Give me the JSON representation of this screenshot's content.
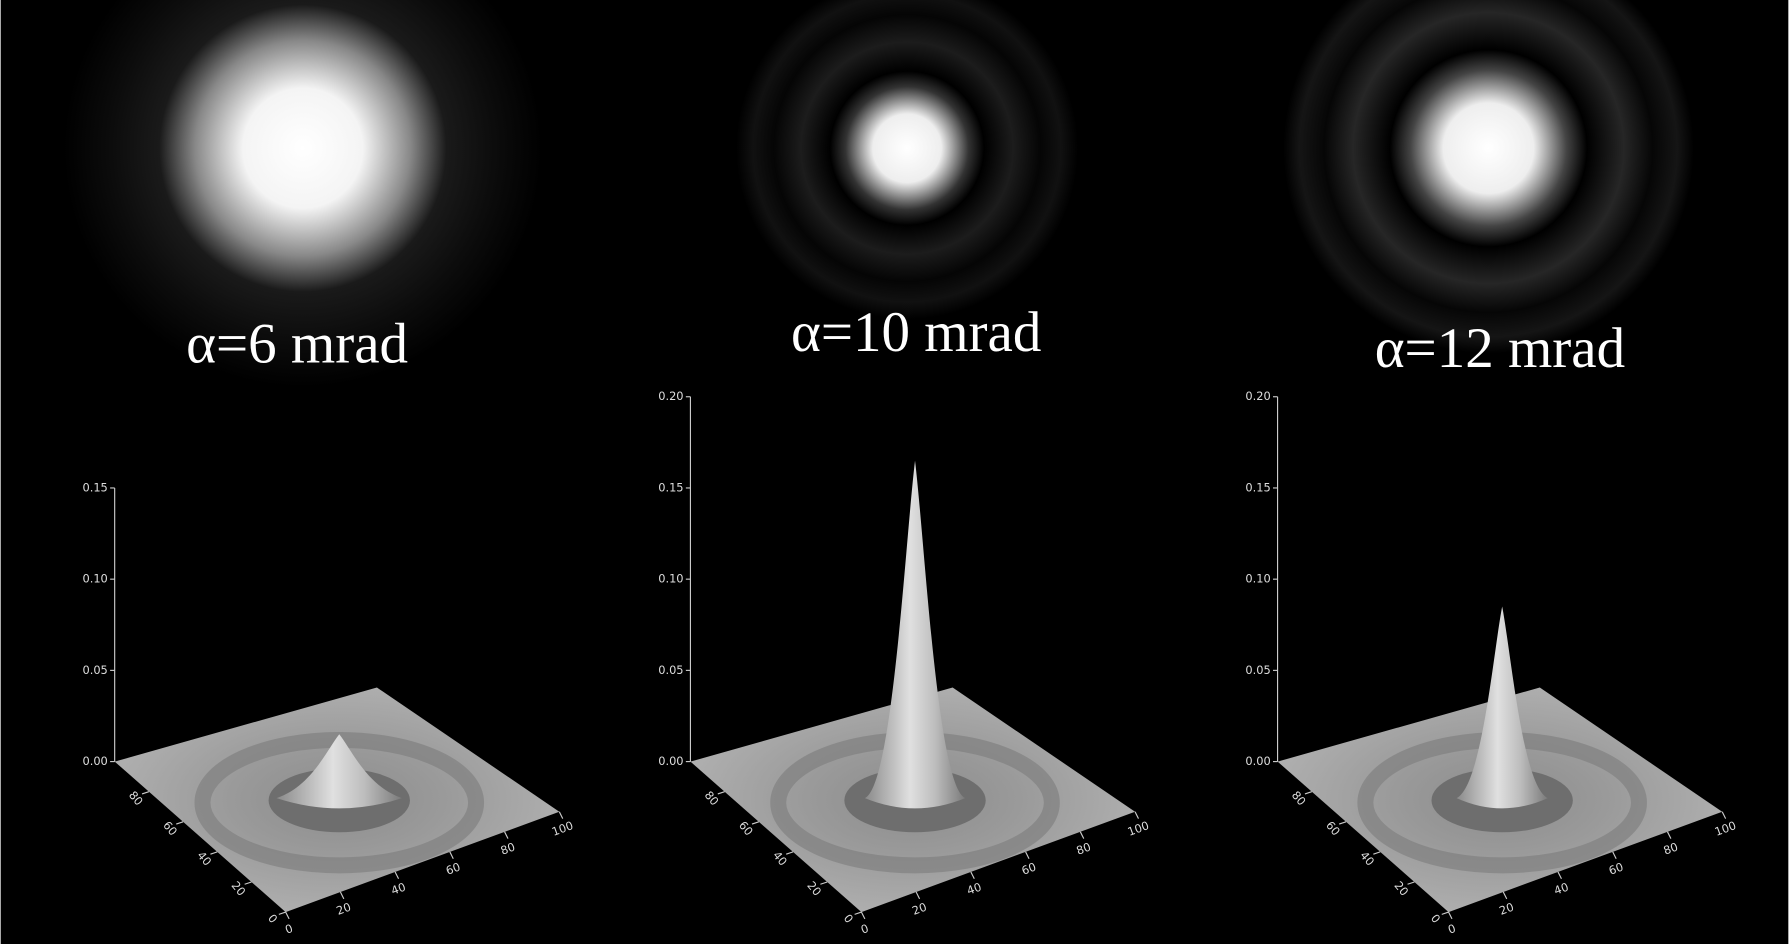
{
  "panels": [
    {
      "label": "α=6 mrad",
      "peak": 0.035,
      "zticks": [
        {
          "value": 0,
          "label": "0.00"
        },
        {
          "value": 0.05,
          "label": "0.05"
        },
        {
          "value": 0.1,
          "label": "0.10"
        },
        {
          "value": 0.15,
          "label": "0.15"
        }
      ],
      "xticks": [
        0,
        20,
        40,
        60,
        80,
        100
      ],
      "yticks": [
        0,
        20,
        40,
        60,
        80
      ]
    },
    {
      "label": "α=10 mrad",
      "peak": 0.185,
      "zticks": [
        {
          "value": 0,
          "label": "0.00"
        },
        {
          "value": 0.05,
          "label": "0.05"
        },
        {
          "value": 0.1,
          "label": "0.10"
        },
        {
          "value": 0.15,
          "label": "0.15"
        },
        {
          "value": 0.2,
          "label": "0.20"
        }
      ],
      "xticks": [
        0,
        20,
        40,
        60,
        80,
        100
      ],
      "yticks": [
        0,
        20,
        40,
        60,
        80
      ]
    },
    {
      "label": "α=12 mrad",
      "peak": 0.105,
      "zticks": [
        {
          "value": 0,
          "label": "0.00"
        },
        {
          "value": 0.05,
          "label": "0.05"
        },
        {
          "value": 0.1,
          "label": "0.10"
        },
        {
          "value": 0.15,
          "label": "0.15"
        },
        {
          "value": 0.2,
          "label": "0.20"
        }
      ],
      "xticks": [
        0,
        20,
        40,
        60,
        80,
        100
      ],
      "yticks": [
        0,
        20,
        40,
        60,
        80
      ]
    }
  ]
}
